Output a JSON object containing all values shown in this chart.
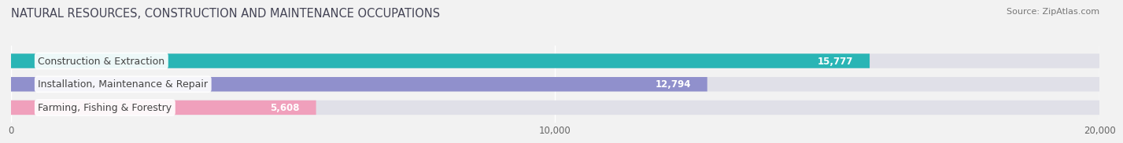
{
  "title": "NATURAL RESOURCES, CONSTRUCTION AND MAINTENANCE OCCUPATIONS",
  "source_text": "Source: ZipAtlas.com",
  "categories": [
    "Construction & Extraction",
    "Installation, Maintenance & Repair",
    "Farming, Fishing & Forestry"
  ],
  "values": [
    15777,
    12794,
    5608
  ],
  "bar_colors": [
    "#2ab5b5",
    "#9090cc",
    "#f0a0bc"
  ],
  "xlim": [
    0,
    20000
  ],
  "xticks": [
    0,
    10000,
    20000
  ],
  "xtick_labels": [
    "0",
    "10,000",
    "20,000"
  ],
  "bar_height": 0.62,
  "track_color": "#e0e0e8",
  "background_color": "#f2f2f2",
  "plot_bg_color": "#f2f2f2",
  "title_fontsize": 10.5,
  "title_color": "#444455",
  "source_fontsize": 8,
  "source_color": "#777777",
  "label_fontsize": 9,
  "value_fontsize": 8.5,
  "tick_fontsize": 8.5,
  "track_max": 20000
}
